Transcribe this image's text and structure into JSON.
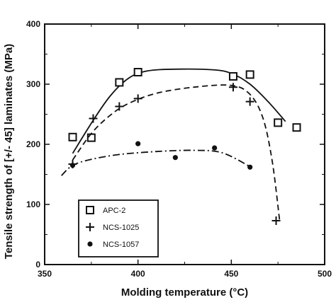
{
  "chart_data": {
    "type": "scatter",
    "title": "",
    "xlabel": "Molding  temperature  (°C)",
    "ylabel": "Tensile  strength  of  [+/-  45]  laminates  (MPa)",
    "xlim": [
      350,
      500
    ],
    "ylim": [
      0,
      400
    ],
    "x_ticks": [
      "350",
      "400",
      "450",
      "500"
    ],
    "y_ticks": [
      "0",
      "100",
      "200",
      "300",
      "400"
    ],
    "legend_position": "bottom-left",
    "grid": false,
    "series": [
      {
        "name": "APC-2",
        "marker": "open-square",
        "line_style": "solid",
        "points": [
          [
            365,
            212
          ],
          [
            375,
            211
          ],
          [
            390,
            303
          ],
          [
            400,
            320
          ],
          [
            451,
            313
          ],
          [
            460,
            316
          ],
          [
            475,
            236
          ],
          [
            485,
            228
          ]
        ],
        "curve": [
          [
            365,
            185
          ],
          [
            375,
            235
          ],
          [
            385,
            280
          ],
          [
            395,
            310
          ],
          [
            405,
            322
          ],
          [
            420,
            325
          ],
          [
            440,
            324
          ],
          [
            450,
            318
          ],
          [
            460,
            300
          ],
          [
            470,
            270
          ],
          [
            479,
            238
          ]
        ]
      },
      {
        "name": "NCS-1025",
        "marker": "plus",
        "line_style": "dashed",
        "points": [
          [
            365,
            167
          ],
          [
            376,
            243
          ],
          [
            390,
            263
          ],
          [
            400,
            276
          ],
          [
            451,
            295
          ],
          [
            460,
            271
          ],
          [
            474,
            73
          ]
        ],
        "curve": [
          [
            365,
            174
          ],
          [
            375,
            218
          ],
          [
            385,
            248
          ],
          [
            395,
            268
          ],
          [
            410,
            285
          ],
          [
            430,
            295
          ],
          [
            450,
            298
          ],
          [
            460,
            283
          ],
          [
            467,
            243
          ],
          [
            472,
            170
          ],
          [
            476,
            70
          ]
        ]
      },
      {
        "name": "NCS-1057",
        "marker": "filled-circle",
        "line_style": "dash-dot",
        "points": [
          [
            365,
            165
          ],
          [
            400,
            201
          ],
          [
            420,
            178
          ],
          [
            441,
            194
          ],
          [
            460,
            162
          ]
        ],
        "curve": [
          [
            359,
            148
          ],
          [
            365,
            165
          ],
          [
            375,
            175
          ],
          [
            390,
            183
          ],
          [
            410,
            188
          ],
          [
            430,
            190
          ],
          [
            445,
            186
          ],
          [
            460,
            163
          ]
        ]
      }
    ]
  }
}
